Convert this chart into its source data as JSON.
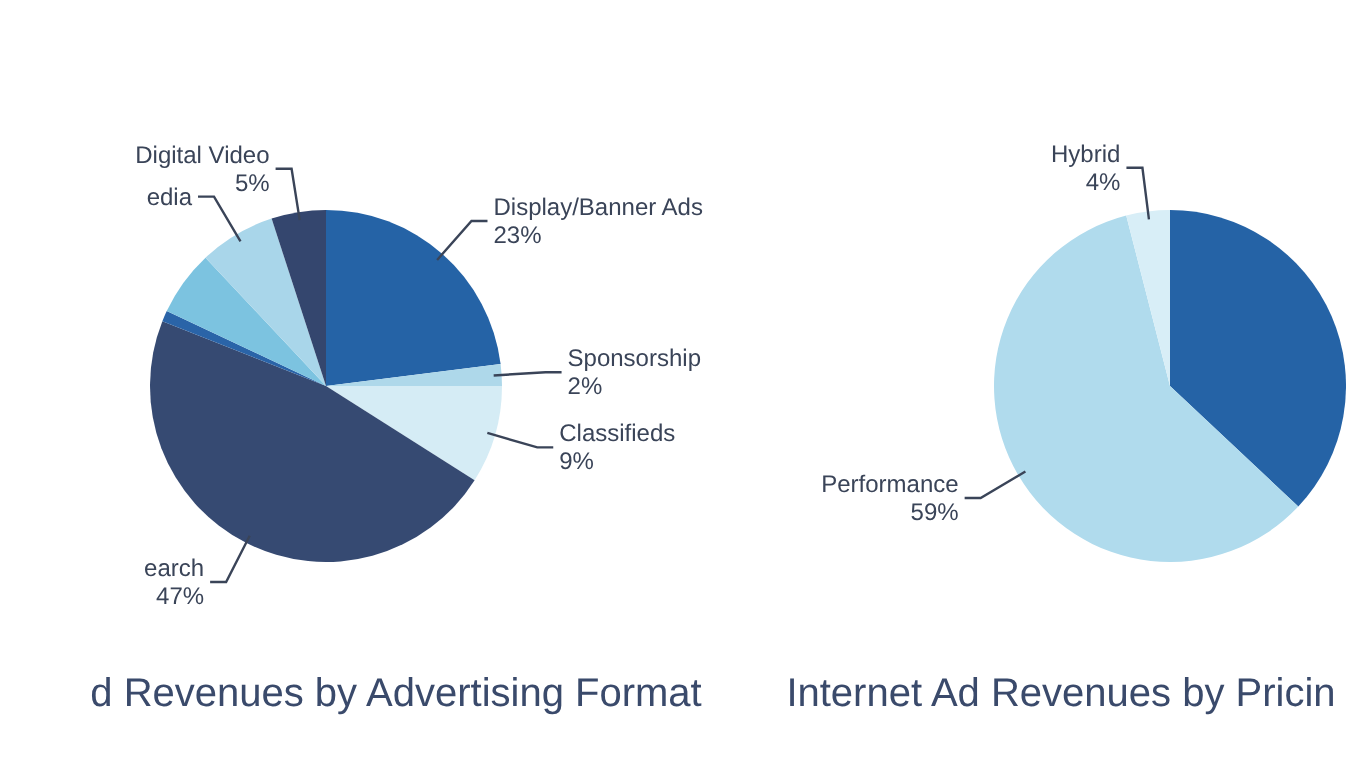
{
  "chart_data": [
    {
      "type": "pie",
      "title": "d Revenues by Advertising Format",
      "categories": [
        "Display/Banner Ads",
        "Sponsorship",
        "Classifieds",
        "earch",
        null,
        null,
        "edia",
        "Digital Video"
      ],
      "values": [
        23,
        2,
        9,
        47,
        1,
        6,
        7,
        5
      ],
      "colors": [
        "#2563a6",
        "#aed8ea",
        "#d5ecf5",
        "#364a72",
        "#2a64a8",
        "#7cc3e0",
        "#a9d6ea",
        "#34466e"
      ],
      "value_labels": [
        "23%",
        "2%",
        "9%",
        "47%",
        null,
        null,
        null,
        "5%"
      ],
      "legend": false
    },
    {
      "type": "pie",
      "title": "Internet Ad Revenues by Pricin",
      "categories": [
        null,
        "Performance",
        "Hybrid"
      ],
      "values": [
        37,
        59,
        4
      ],
      "colors": [
        "#2563a6",
        "#b0dbed",
        "#d8eef7"
      ],
      "value_labels": [
        null,
        "59%",
        "4%"
      ],
      "legend": false
    }
  ]
}
